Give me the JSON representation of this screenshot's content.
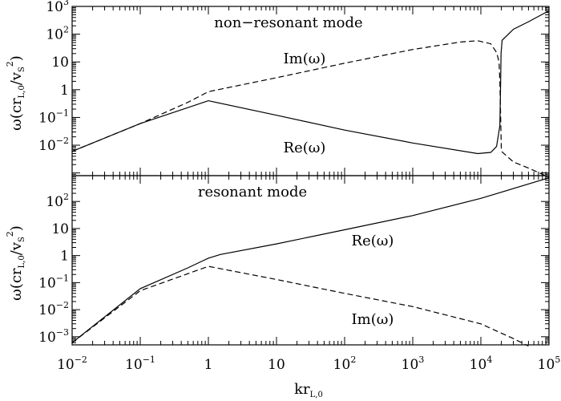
{
  "chart_data": [
    {
      "type": "line",
      "panel": "top",
      "title": "non−resonant mode",
      "xlabel": "kr_L,0",
      "ylabel": "ω(cr_L,0/v_S^2)",
      "xscale": "log",
      "yscale": "log",
      "xlim": [
        0.01,
        100000
      ],
      "ylim": [
        0.0008,
        1000
      ],
      "yticks": [
        {
          "value": 1000,
          "base": "10",
          "exp": "3"
        },
        {
          "value": 100,
          "base": "10",
          "exp": "2"
        },
        {
          "value": 10,
          "base": "10",
          "exp": ""
        },
        {
          "value": 1,
          "base": "1",
          "exp": ""
        },
        {
          "value": 0.1,
          "base": "10",
          "exp": "−1"
        },
        {
          "value": 0.01,
          "base": "10",
          "exp": "−2"
        }
      ],
      "series": [
        {
          "name": "Re(ω)",
          "style": "solid",
          "points": [
            [
              0.01,
              0.006
            ],
            [
              0.1,
              0.06
            ],
            [
              1,
              0.4
            ],
            [
              10,
              0.12
            ],
            [
              100,
              0.035
            ],
            [
              1000,
              0.012
            ],
            [
              9000,
              0.005
            ],
            [
              14000,
              0.0055
            ],
            [
              17000,
              0.009
            ],
            [
              19000,
              0.05
            ],
            [
              19500,
              2
            ],
            [
              19800,
              20
            ],
            [
              20500,
              60
            ],
            [
              30000,
              150
            ],
            [
              50000,
              280
            ],
            [
              100000,
              700
            ]
          ]
        },
        {
          "name": "Im(ω)",
          "style": "dashed",
          "points": [
            [
              0.01,
              0.006
            ],
            [
              0.1,
              0.06
            ],
            [
              0.5,
              0.35
            ],
            [
              1,
              0.85
            ],
            [
              10,
              2.7
            ],
            [
              100,
              9
            ],
            [
              1000,
              28
            ],
            [
              5000,
              52
            ],
            [
              9000,
              58
            ],
            [
              14000,
              45
            ],
            [
              17000,
              22
            ],
            [
              18500,
              10
            ],
            [
              19000,
              2
            ],
            [
              19500,
              0.1
            ],
            [
              20000,
              0.006
            ],
            [
              30000,
              0.0025
            ],
            [
              50000,
              0.0015
            ],
            [
              100000,
              0.0007
            ]
          ]
        }
      ],
      "annotations": [
        {
          "text": "non−resonant mode"
        },
        {
          "text": "Im(ω)"
        },
        {
          "text": "Re(ω)"
        }
      ]
    },
    {
      "type": "line",
      "panel": "bottom",
      "title": "resonant mode",
      "xlabel": "kr_L,0",
      "ylabel": "ω(cr_L,0/v_S^2)",
      "xscale": "log",
      "yscale": "log",
      "xlim": [
        0.01,
        100000
      ],
      "ylim": [
        0.0005,
        900
      ],
      "yticks": [
        {
          "value": 100,
          "base": "10",
          "exp": "2"
        },
        {
          "value": 10,
          "base": "10",
          "exp": ""
        },
        {
          "value": 1,
          "base": "1",
          "exp": ""
        },
        {
          "value": 0.1,
          "base": "10",
          "exp": "−1"
        },
        {
          "value": 0.01,
          "base": "10",
          "exp": "−2"
        },
        {
          "value": 0.001,
          "base": "10",
          "exp": "−3"
        }
      ],
      "xticks": [
        {
          "value": 0.01,
          "base": "10",
          "exp": "−2"
        },
        {
          "value": 0.1,
          "base": "10",
          "exp": "−1"
        },
        {
          "value": 1,
          "base": "1",
          "exp": ""
        },
        {
          "value": 10,
          "base": "10",
          "exp": ""
        },
        {
          "value": 100,
          "base": "10",
          "exp": "2"
        },
        {
          "value": 1000,
          "base": "10",
          "exp": "3"
        },
        {
          "value": 10000,
          "base": "10",
          "exp": "4"
        },
        {
          "value": 100000,
          "base": "10",
          "exp": "5"
        }
      ],
      "series": [
        {
          "name": "Re(ω)",
          "style": "solid",
          "points": [
            [
              0.01,
              0.0006
            ],
            [
              0.1,
              0.06
            ],
            [
              0.5,
              0.35
            ],
            [
              1,
              0.8
            ],
            [
              1.5,
              1.1
            ],
            [
              10,
              2.7
            ],
            [
              100,
              9
            ],
            [
              1000,
              30
            ],
            [
              10000,
              130
            ],
            [
              100000,
              750
            ]
          ]
        },
        {
          "name": "Im(ω)",
          "style": "dashed",
          "points": [
            [
              0.01,
              0.0006
            ],
            [
              0.1,
              0.05
            ],
            [
              1,
              0.4
            ],
            [
              10,
              0.13
            ],
            [
              100,
              0.04
            ],
            [
              1000,
              0.013
            ],
            [
              10000,
              0.003
            ],
            [
              30000,
              0.00085
            ],
            [
              50000,
              0.00045
            ]
          ]
        }
      ],
      "annotations": [
        {
          "text": "resonant mode"
        },
        {
          "text": "Re(ω)"
        },
        {
          "text": "Im(ω)"
        }
      ]
    }
  ],
  "axes": {
    "xlabel_main": "kr",
    "xlabel_sub": "L,0",
    "ylabel_main": "ω(cr",
    "ylabel_sub": "L,0",
    "ylabel_mid": "/v",
    "ylabel_sub2": "S",
    "ylabel_sup": "2",
    "ylabel_end": ")"
  }
}
